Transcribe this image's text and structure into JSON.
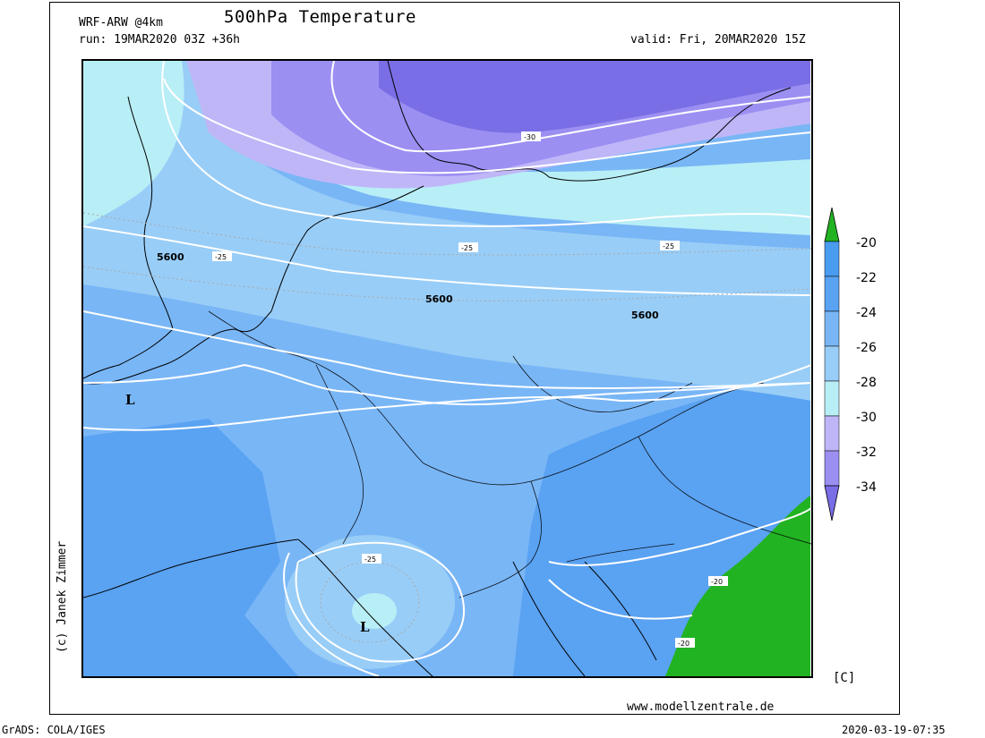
{
  "header": {
    "model": "WRF-ARW @4km",
    "title": "500hPa Temperature",
    "run": "run: 19MAR2020 03Z +36h",
    "valid": "valid: Fri, 20MAR2020 15Z"
  },
  "map": {
    "contour_labels": {
      "geopotential": [
        "5600",
        "5600",
        "5600"
      ],
      "temperature": [
        "-30",
        "-25",
        "-25",
        "-25",
        "-25",
        "-20",
        "-20"
      ]
    },
    "low_markers": [
      "L",
      "L"
    ],
    "colors": {
      "purple_dark": "#7a6ee6",
      "purple_mid": "#9b8ff2",
      "purple_light": "#bfb6f8",
      "cyan": "#b8eef6",
      "blue_light": "#98cdf7",
      "blue_mid": "#79b6f6",
      "blue_dark": "#5aa2f2",
      "green": "#22b322"
    }
  },
  "legend": {
    "unit": "[C]",
    "labels": [
      "-20",
      "-22",
      "-24",
      "-26",
      "-28",
      "-30",
      "-32",
      "-34"
    ],
    "colors": [
      "#22b322",
      "#4a9cf0",
      "#5aa2f2",
      "#79b6f6",
      "#98cdf7",
      "#b8eef6",
      "#bfb6f8",
      "#9b8ff2",
      "#7a6ee6"
    ]
  },
  "credits": {
    "copyright": "(c) Janek Zimmer",
    "website": "www.modellzentrale.de",
    "grads": "GrADS: COLA/IGES",
    "timestamp": "2020-03-19-07:35"
  }
}
